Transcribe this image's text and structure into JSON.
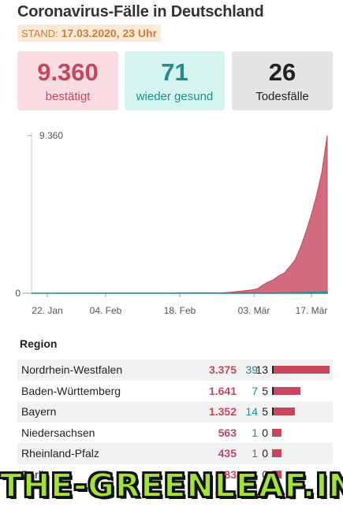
{
  "header": {
    "title": "Coronavirus-Fälle in Deutschland",
    "stand_label": "STAND:",
    "stand_value": "17.03.2020, 23 Uhr"
  },
  "cards": {
    "confirmed": {
      "value": "9.360",
      "label": "bestätigt"
    },
    "recovered": {
      "value": "71",
      "label": "wieder gesund"
    },
    "deaths": {
      "value": "26",
      "label": "Todesfälle"
    }
  },
  "colors": {
    "confirmed": "#c6465e",
    "recovered": "#1e8e90",
    "deaths": "#222222"
  },
  "chart_data": {
    "type": "area",
    "x_ticks": [
      "22. Jan",
      "04. Feb",
      "18. Feb",
      "03. Mär",
      "17. Mär"
    ],
    "y_ticks": [
      "0",
      "9.360"
    ],
    "ylim": [
      0,
      9360
    ],
    "x": [
      "22.01",
      "27.01",
      "01.02",
      "06.02",
      "11.02",
      "16.02",
      "21.02",
      "24.02",
      "26.02",
      "28.02",
      "01.03",
      "03.03",
      "04.03",
      "05.03",
      "06.03",
      "07.03",
      "08.03",
      "09.03",
      "10.03",
      "11.03",
      "12.03",
      "13.03",
      "14.03",
      "15.03",
      "16.03",
      "17.03"
    ],
    "series": [
      {
        "values": [
          0,
          4,
          10,
          12,
          16,
          16,
          16,
          16,
          20,
          60,
          130,
          200,
          260,
          480,
          670,
          800,
          1040,
          1200,
          1570,
          1970,
          2700,
          3600,
          4600,
          5800,
          7200,
          9360
        ]
      },
      {
        "values": [
          0,
          0,
          0,
          0,
          0,
          0,
          14,
          16,
          16,
          16,
          16,
          16,
          16,
          16,
          16,
          16,
          18,
          18,
          25,
          25,
          25,
          46,
          46,
          46,
          46,
          71
        ]
      }
    ]
  },
  "table": {
    "header": "Region",
    "rows": [
      {
        "name": "Nordrhein-Westfalen",
        "confirmed": "3.375",
        "recovered": "39",
        "deaths": "13",
        "confirmed_num": 3375,
        "deaths_num": 13
      },
      {
        "name": "Baden-Württemberg",
        "confirmed": "1.641",
        "recovered": "7",
        "deaths": "5",
        "confirmed_num": 1641,
        "deaths_num": 5
      },
      {
        "name": "Bayern",
        "confirmed": "1.352",
        "recovered": "14",
        "deaths": "5",
        "confirmed_num": 1352,
        "deaths_num": 5
      },
      {
        "name": "Niedersachsen",
        "confirmed": "563",
        "recovered": "1",
        "deaths": "0",
        "confirmed_num": 563,
        "deaths_num": 0
      },
      {
        "name": "Rheinland-Pfalz",
        "confirmed": "435",
        "recovered": "1",
        "deaths": "0",
        "confirmed_num": 435,
        "deaths_num": 0
      },
      {
        "name": "Berlin",
        "confirmed": "383",
        "recovered": "1",
        "deaths": "0",
        "confirmed_num": 383,
        "deaths_num": 0
      }
    ]
  },
  "watermark": "THE-GREENLEAF.IN"
}
